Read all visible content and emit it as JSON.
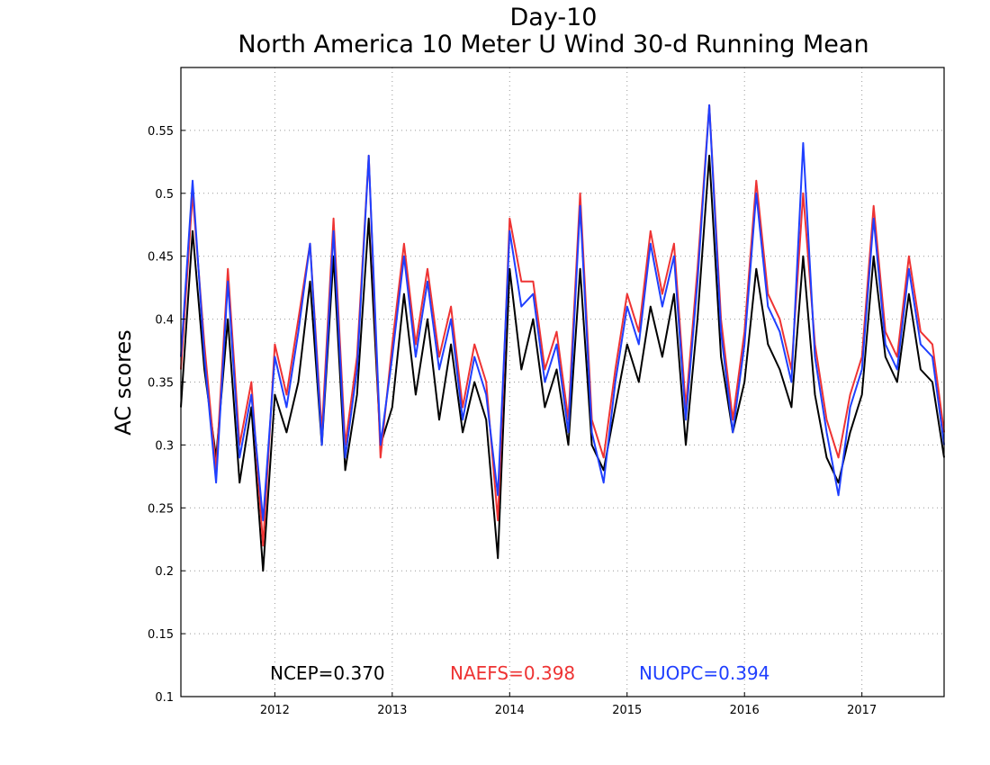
{
  "chart_data": {
    "type": "line",
    "title": "Day-10",
    "subtitle": "North America 10 Meter U Wind 30-d Running Mean",
    "xlabel": "",
    "ylabel": "AC scores",
    "ylim": [
      0.1,
      0.6
    ],
    "yticks": [
      0.1,
      0.15,
      0.2,
      0.25,
      0.3,
      0.35,
      0.4,
      0.45,
      0.5,
      0.55
    ],
    "ytick_labels": [
      "0.1",
      "0.15",
      "0.2",
      "0.25",
      "0.3",
      "0.35",
      "0.4",
      "0.45",
      "0.5",
      "0.55"
    ],
    "xlim": [
      2011.2,
      2017.7
    ],
    "xticks": [
      2012,
      2013,
      2014,
      2015,
      2016,
      2017
    ],
    "xtick_labels": [
      "2012",
      "2013",
      "2014",
      "2015",
      "2016",
      "2017"
    ],
    "grid": true,
    "legend_placement": "bottom-center",
    "x": [
      2011.2,
      2011.3,
      2011.4,
      2011.5,
      2011.6,
      2011.7,
      2011.8,
      2011.9,
      2012.0,
      2012.1,
      2012.2,
      2012.3,
      2012.4,
      2012.5,
      2012.6,
      2012.7,
      2012.8,
      2012.9,
      2013.0,
      2013.1,
      2013.2,
      2013.3,
      2013.4,
      2013.5,
      2013.6,
      2013.7,
      2013.8,
      2013.9,
      2014.0,
      2014.1,
      2014.2,
      2014.3,
      2014.4,
      2014.5,
      2014.6,
      2014.7,
      2014.8,
      2014.9,
      2015.0,
      2015.1,
      2015.2,
      2015.3,
      2015.4,
      2015.5,
      2015.6,
      2015.7,
      2015.8,
      2015.9,
      2016.0,
      2016.1,
      2016.2,
      2016.3,
      2016.4,
      2016.5,
      2016.6,
      2016.7,
      2016.8,
      2016.9,
      2017.0,
      2017.1,
      2017.2,
      2017.3,
      2017.4,
      2017.5,
      2017.6,
      2017.7
    ],
    "series": [
      {
        "name": "NCEP",
        "color": "#000000",
        "legend_label": "NCEP=0.370",
        "values": [
          0.33,
          0.47,
          0.36,
          0.29,
          0.4,
          0.27,
          0.33,
          0.2,
          0.34,
          0.31,
          0.35,
          0.43,
          0.3,
          0.45,
          0.28,
          0.34,
          0.48,
          0.3,
          0.33,
          0.42,
          0.34,
          0.4,
          0.32,
          0.38,
          0.31,
          0.35,
          0.32,
          0.21,
          0.44,
          0.36,
          0.4,
          0.33,
          0.36,
          0.3,
          0.44,
          0.3,
          0.28,
          0.33,
          0.38,
          0.35,
          0.41,
          0.37,
          0.42,
          0.3,
          0.4,
          0.53,
          0.37,
          0.31,
          0.35,
          0.44,
          0.38,
          0.36,
          0.33,
          0.45,
          0.34,
          0.29,
          0.27,
          0.31,
          0.34,
          0.45,
          0.37,
          0.35,
          0.42,
          0.36,
          0.35,
          0.29
        ]
      },
      {
        "name": "NAEFS",
        "color": "#ee3333",
        "legend_label": "NAEFS=0.398",
        "values": [
          0.36,
          0.5,
          0.38,
          0.28,
          0.44,
          0.3,
          0.35,
          0.22,
          0.38,
          0.34,
          0.4,
          0.46,
          0.31,
          0.48,
          0.3,
          0.37,
          0.53,
          0.29,
          0.38,
          0.46,
          0.38,
          0.44,
          0.37,
          0.41,
          0.33,
          0.38,
          0.35,
          0.24,
          0.48,
          0.43,
          0.43,
          0.36,
          0.39,
          0.32,
          0.5,
          0.32,
          0.29,
          0.36,
          0.42,
          0.39,
          0.47,
          0.42,
          0.46,
          0.33,
          0.44,
          0.57,
          0.4,
          0.32,
          0.39,
          0.51,
          0.42,
          0.4,
          0.36,
          0.5,
          0.38,
          0.32,
          0.29,
          0.34,
          0.37,
          0.49,
          0.39,
          0.37,
          0.45,
          0.39,
          0.38,
          0.31
        ]
      },
      {
        "name": "NUOPC",
        "color": "#1f3fff",
        "legend_label": "NUOPC=0.394",
        "values": [
          0.37,
          0.51,
          0.37,
          0.27,
          0.43,
          0.29,
          0.34,
          0.24,
          0.37,
          0.33,
          0.39,
          0.46,
          0.3,
          0.47,
          0.29,
          0.36,
          0.53,
          0.3,
          0.37,
          0.45,
          0.37,
          0.43,
          0.36,
          0.4,
          0.32,
          0.37,
          0.34,
          0.26,
          0.47,
          0.41,
          0.42,
          0.35,
          0.38,
          0.31,
          0.49,
          0.31,
          0.27,
          0.35,
          0.41,
          0.38,
          0.46,
          0.41,
          0.45,
          0.32,
          0.43,
          0.57,
          0.39,
          0.31,
          0.38,
          0.5,
          0.41,
          0.39,
          0.35,
          0.54,
          0.37,
          0.31,
          0.26,
          0.33,
          0.36,
          0.48,
          0.38,
          0.36,
          0.44,
          0.38,
          0.37,
          0.3
        ]
      }
    ]
  }
}
